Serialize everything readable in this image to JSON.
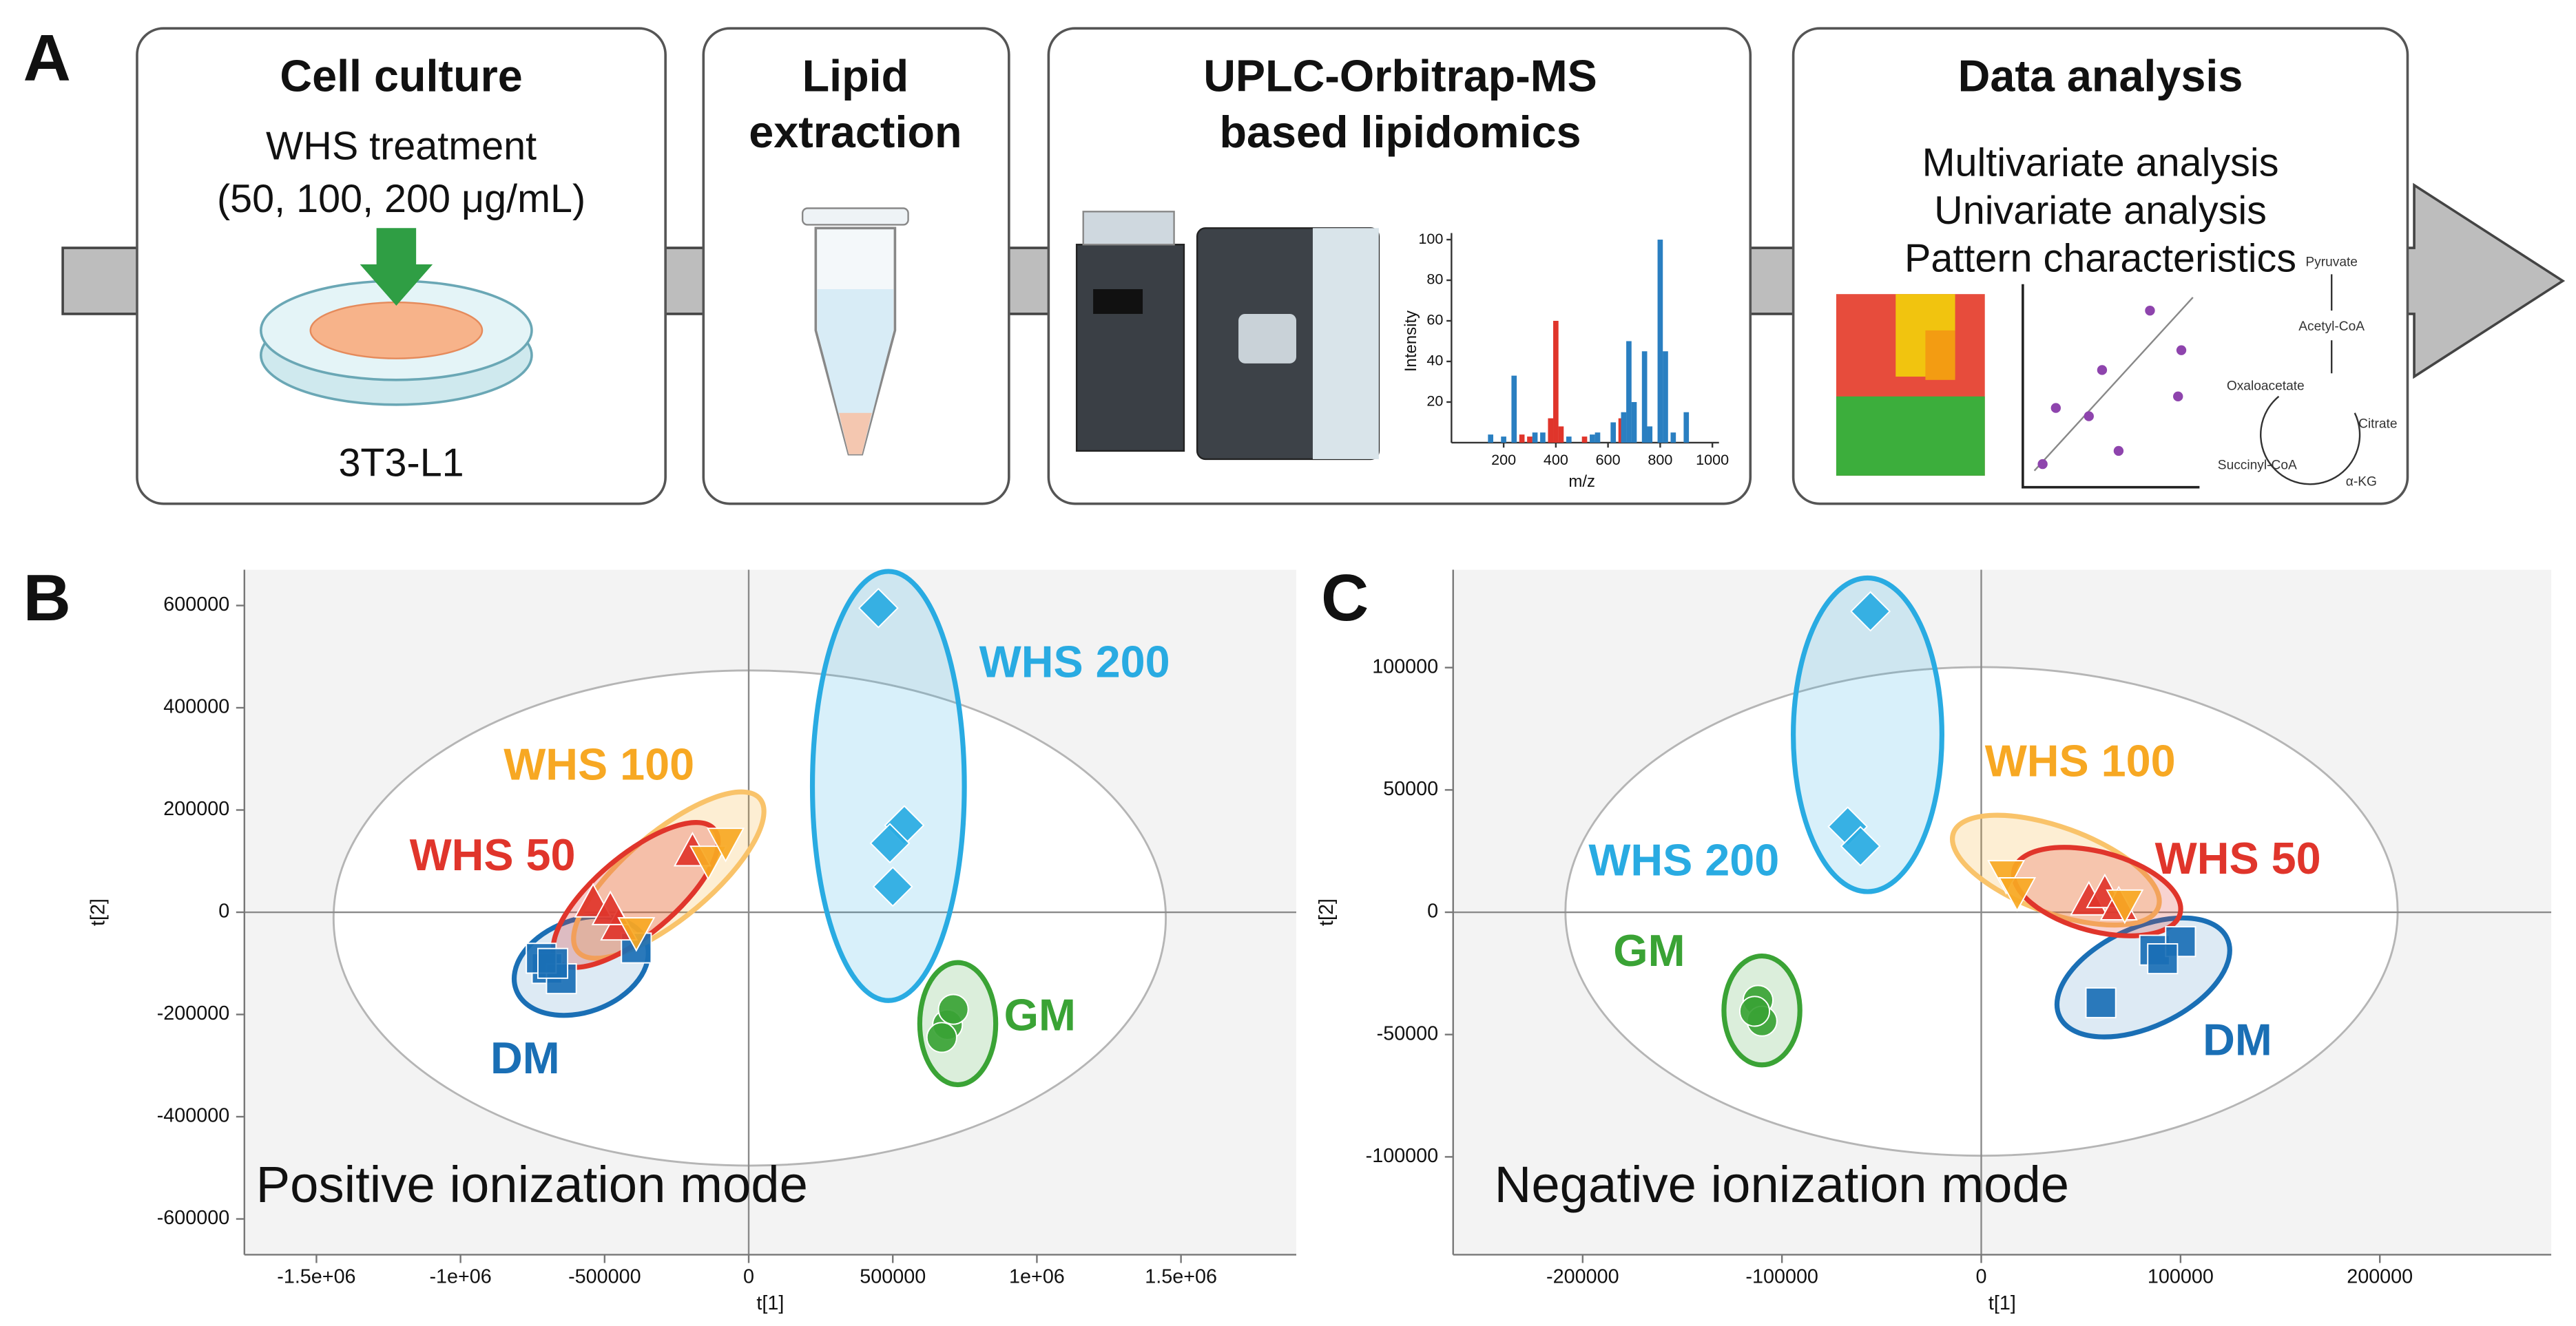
{
  "panel_a": {
    "label": "A",
    "steps": [
      {
        "title": [
          "Cell culture"
        ],
        "lines": [
          "WHS treatment",
          "(50, 100, 200 μg/mL)"
        ],
        "footer": "3T3-L1"
      },
      {
        "title": [
          "Lipid",
          "extraction"
        ]
      },
      {
        "title": [
          "UPLC-Orbitrap-MS",
          "based lipidomics"
        ]
      },
      {
        "title": [
          "Data analysis"
        ],
        "lines": [
          "Multivariate analysis",
          "Univariate analysis",
          "Pattern characteristics"
        ]
      }
    ],
    "pathway": [
      "Pyruvate",
      "Acetyl-CoA",
      "Oxaloacetate",
      "Citrate",
      "Succinyl-CoA",
      "α-KG"
    ]
  },
  "chart_data": [
    {
      "type": "bar",
      "xlabel": "m/z",
      "ylabel": "Intensity",
      "x": [
        150,
        200,
        240,
        270,
        300,
        320,
        350,
        380,
        400,
        420,
        450,
        510,
        540,
        560,
        620,
        650,
        660,
        680,
        700,
        740,
        760,
        800,
        820,
        850,
        900
      ],
      "values": [
        4,
        3,
        33,
        4,
        3,
        5,
        5,
        12,
        60,
        8,
        3,
        3,
        4,
        5,
        10,
        12,
        15,
        50,
        20,
        45,
        8,
        100,
        45,
        5,
        15
      ],
      "colors": [
        "#2a7fc1",
        "#2a7fc1",
        "#2a7fc1",
        "#e0352b",
        "#e0352b",
        "#2a7fc1",
        "#2a7fc1",
        "#e0352b",
        "#e0352b",
        "#e0352b",
        "#2a7fc1",
        "#e0352b",
        "#2a7fc1",
        "#2a7fc1",
        "#2a7fc1",
        "#e0352b",
        "#2a7fc1",
        "#2a7fc1",
        "#2a7fc1",
        "#2a7fc1",
        "#2a7fc1",
        "#2a7fc1",
        "#2a7fc1",
        "#2a7fc1",
        "#2a7fc1"
      ],
      "xlim": [
        0,
        1000
      ],
      "xticks": [
        200,
        400,
        600,
        800,
        1000
      ],
      "ylim": [
        0,
        100
      ],
      "yticks": [
        20,
        40,
        60,
        80,
        100
      ]
    },
    {
      "type": "scatter",
      "panel": "B",
      "subtitle": "Positive ionization mode",
      "xlabel": "t[1]",
      "ylabel": "t[2]",
      "xlim": [
        -1750000,
        1900000
      ],
      "ylim": [
        -670000,
        670000
      ],
      "xticks": [
        {
          "value": -1500000,
          "label": "-1.5e+06"
        },
        {
          "value": -1000000,
          "label": "-1e+06"
        },
        -500000,
        0,
        500000,
        {
          "value": 1000000,
          "label": "1e+06"
        },
        {
          "value": 1500000,
          "label": "1.5e+06"
        }
      ],
      "yticks": [
        -600000,
        -400000,
        -200000,
        0,
        200000,
        400000,
        600000
      ],
      "series": [
        {
          "name": "DM",
          "color": "#1a6fb5",
          "marker": "square",
          "x": [
            -700000,
            -650000,
            -720000,
            -390000,
            -680000
          ],
          "values": [
            -110000,
            -130000,
            -90000,
            -70000,
            -100000
          ]
        },
        {
          "name": "WHS 50",
          "color": "#e0352b",
          "marker": "triangle",
          "x": [
            -540000,
            -450000,
            -195000,
            -480000
          ],
          "values": [
            20000,
            -25000,
            120000,
            5000
          ]
        },
        {
          "name": "WHS 100",
          "color": "#f7a823",
          "marker": "triangle-down",
          "x": [
            -140000,
            -80000,
            -390000
          ],
          "values": [
            100000,
            135000,
            -40000
          ]
        },
        {
          "name": "WHS 200",
          "color": "#29abe2",
          "marker": "diamond",
          "x": [
            450000,
            540000,
            490000,
            500000
          ],
          "values": [
            595000,
            170000,
            135000,
            50000
          ]
        },
        {
          "name": "GM",
          "color": "#3aa335",
          "marker": "circle",
          "x": [
            690000,
            710000,
            670000
          ],
          "values": [
            -220000,
            -190000,
            -245000
          ]
        }
      ]
    },
    {
      "type": "scatter",
      "panel": "C",
      "subtitle": "Negative ionization mode",
      "xlabel": "t[1]",
      "ylabel": "t[2]",
      "xlim": [
        -265000,
        286000
      ],
      "ylim": [
        -140000,
        140000
      ],
      "xticks": [
        -200000,
        -100000,
        0,
        100000,
        200000
      ],
      "yticks": [
        -100000,
        -50000,
        0,
        50000,
        100000
      ],
      "series": [
        {
          "name": "DM",
          "color": "#1a6fb5",
          "marker": "square",
          "x": [
            60000,
            87000,
            100000,
            91000
          ],
          "values": [
            -37000,
            -15500,
            -12000,
            -19000
          ]
        },
        {
          "name": "WHS 50",
          "color": "#e0352b",
          "marker": "triangle",
          "x": [
            54000,
            62000,
            69000
          ],
          "values": [
            5000,
            8000,
            3000
          ]
        },
        {
          "name": "WHS 100",
          "color": "#f7a823",
          "marker": "triangle-down",
          "x": [
            12500,
            18000,
            72000
          ],
          "values": [
            15000,
            8000,
            3000
          ]
        },
        {
          "name": "WHS 200",
          "color": "#29abe2",
          "marker": "diamond",
          "x": [
            -55600,
            -67000,
            -60600
          ],
          "values": [
            123000,
            35000,
            27000
          ]
        },
        {
          "name": "GM",
          "color": "#3aa335",
          "marker": "circle",
          "x": [
            -112000,
            -110000,
            -113700
          ],
          "values": [
            -36000,
            -44500,
            -40500
          ]
        }
      ]
    }
  ]
}
